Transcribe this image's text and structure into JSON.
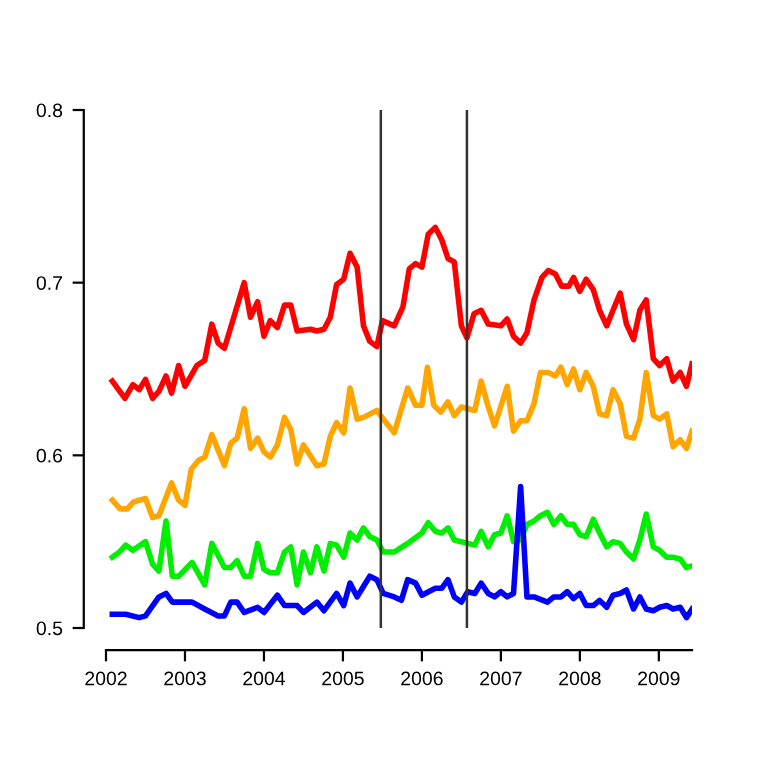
{
  "chart_data": {
    "type": "line",
    "xlim": [
      2002,
      2009.42
    ],
    "ylim": [
      0.5,
      0.8
    ],
    "xticks": [
      2002,
      2003,
      2004,
      2005,
      2006,
      2007,
      2008,
      2009
    ],
    "yticks": [
      {
        "value": 0.5,
        "label": "0.5"
      },
      {
        "value": 0.6,
        "label": "0.6"
      },
      {
        "value": 0.7,
        "label": "0.7"
      },
      {
        "value": 0.8,
        "label": "0.8"
      }
    ],
    "grid": false,
    "marker": "none",
    "line_style": "solid",
    "ref_lines": [
      {
        "axis": "x",
        "value": 2005.48,
        "color": "#333333"
      },
      {
        "axis": "x",
        "value": 2006.57,
        "color": "#333333"
      }
    ],
    "series": [
      {
        "color": "#ff0000",
        "x": [
          2002.08,
          2002.24,
          2002.34,
          2002.42,
          2002.5,
          2002.59,
          2002.67,
          2002.76,
          2002.83,
          2002.92,
          2003.0,
          2003.15,
          2003.25,
          2003.34,
          2003.42,
          2003.5,
          2003.75,
          2003.83,
          2003.92,
          2004.0,
          2004.08,
          2004.17,
          2004.26,
          2004.34,
          2004.42,
          2004.59,
          2004.67,
          2004.76,
          2004.84,
          2004.92,
          2005.01,
          2005.09,
          2005.18,
          2005.26,
          2005.34,
          2005.43,
          2005.5,
          2005.65,
          2005.76,
          2005.84,
          2005.92,
          2006.0,
          2006.08,
          2006.17,
          2006.25,
          2006.33,
          2006.41,
          2006.5,
          2006.57,
          2006.66,
          2006.75,
          2006.84,
          2007.0,
          2007.08,
          2007.16,
          2007.25,
          2007.33,
          2007.42,
          2007.52,
          2007.6,
          2007.69,
          2007.77,
          2007.86,
          2007.92,
          2008.0,
          2008.08,
          2008.17,
          2008.25,
          2008.34,
          2008.42,
          2008.51,
          2008.59,
          2008.68,
          2008.76,
          2008.84,
          2008.93,
          2009.01,
          2009.1,
          2009.18,
          2009.27,
          2009.35,
          2009.42
        ],
        "values": [
          0.643,
          0.633,
          0.641,
          0.638,
          0.644,
          0.633,
          0.637,
          0.646,
          0.636,
          0.652,
          0.64,
          0.652,
          0.655,
          0.676,
          0.665,
          0.662,
          0.7,
          0.68,
          0.689,
          0.669,
          0.678,
          0.674,
          0.687,
          0.687,
          0.672,
          0.673,
          0.672,
          0.673,
          0.68,
          0.699,
          0.702,
          0.717,
          0.709,
          0.675,
          0.666,
          0.663,
          0.678,
          0.675,
          0.686,
          0.708,
          0.711,
          0.709,
          0.728,
          0.732,
          0.725,
          0.714,
          0.712,
          0.675,
          0.668,
          0.682,
          0.684,
          0.676,
          0.675,
          0.679,
          0.669,
          0.665,
          0.671,
          0.69,
          0.703,
          0.707,
          0.705,
          0.698,
          0.698,
          0.703,
          0.695,
          0.702,
          0.696,
          0.684,
          0.675,
          0.684,
          0.694,
          0.676,
          0.667,
          0.684,
          0.69,
          0.656,
          0.652,
          0.656,
          0.643,
          0.648,
          0.64,
          0.653
        ]
      },
      {
        "color": "#ffa500",
        "x": [
          2002.08,
          2002.18,
          2002.27,
          2002.35,
          2002.5,
          2002.59,
          2002.67,
          2002.83,
          2002.92,
          2003.0,
          2003.08,
          2003.17,
          2003.25,
          2003.34,
          2003.42,
          2003.5,
          2003.58,
          2003.66,
          2003.75,
          2003.83,
          2003.92,
          2004.0,
          2004.08,
          2004.17,
          2004.26,
          2004.34,
          2004.42,
          2004.5,
          2004.67,
          2004.76,
          2004.84,
          2004.92,
          2005.01,
          2005.09,
          2005.18,
          2005.26,
          2005.43,
          2005.51,
          2005.65,
          2005.82,
          2005.92,
          2006.0,
          2006.07,
          2006.15,
          2006.24,
          2006.33,
          2006.41,
          2006.5,
          2006.67,
          2006.75,
          2006.84,
          2006.92,
          2007.08,
          2007.16,
          2007.25,
          2007.33,
          2007.42,
          2007.5,
          2007.6,
          2007.69,
          2007.76,
          2007.84,
          2007.92,
          2008.0,
          2008.08,
          2008.17,
          2008.25,
          2008.34,
          2008.42,
          2008.51,
          2008.59,
          2008.68,
          2008.76,
          2008.84,
          2008.93,
          2009.01,
          2009.1,
          2009.18,
          2009.27,
          2009.35,
          2009.42
        ],
        "values": [
          0.574,
          0.569,
          0.569,
          0.573,
          0.575,
          0.564,
          0.565,
          0.584,
          0.574,
          0.571,
          0.592,
          0.597,
          0.599,
          0.612,
          0.603,
          0.594,
          0.607,
          0.61,
          0.627,
          0.604,
          0.61,
          0.602,
          0.599,
          0.606,
          0.622,
          0.615,
          0.595,
          0.606,
          0.594,
          0.595,
          0.611,
          0.619,
          0.613,
          0.639,
          0.621,
          0.622,
          0.626,
          0.621,
          0.613,
          0.639,
          0.629,
          0.629,
          0.651,
          0.629,
          0.625,
          0.631,
          0.623,
          0.628,
          0.626,
          0.643,
          0.628,
          0.617,
          0.64,
          0.614,
          0.62,
          0.62,
          0.63,
          0.648,
          0.648,
          0.646,
          0.651,
          0.641,
          0.65,
          0.638,
          0.648,
          0.64,
          0.624,
          0.623,
          0.638,
          0.63,
          0.611,
          0.61,
          0.621,
          0.648,
          0.623,
          0.621,
          0.624,
          0.605,
          0.609,
          0.604,
          0.614
        ]
      },
      {
        "color": "#00ee00",
        "x": [
          2002.08,
          2002.17,
          2002.25,
          2002.34,
          2002.5,
          2002.59,
          2002.67,
          2002.76,
          2002.84,
          2002.92,
          2003.09,
          2003.25,
          2003.34,
          2003.5,
          2003.58,
          2003.66,
          2003.75,
          2003.83,
          2003.92,
          2004.0,
          2004.08,
          2004.17,
          2004.26,
          2004.34,
          2004.42,
          2004.5,
          2004.59,
          2004.67,
          2004.76,
          2004.84,
          2004.92,
          2005.01,
          2005.09,
          2005.18,
          2005.26,
          2005.34,
          2005.43,
          2005.51,
          2005.65,
          2005.82,
          2006.0,
          2006.08,
          2006.17,
          2006.25,
          2006.33,
          2006.41,
          2006.58,
          2006.67,
          2006.75,
          2006.84,
          2006.92,
          2007.0,
          2007.08,
          2007.16,
          2007.25,
          2007.33,
          2007.42,
          2007.5,
          2007.59,
          2007.67,
          2007.76,
          2007.84,
          2007.92,
          2008.0,
          2008.08,
          2008.17,
          2008.25,
          2008.34,
          2008.42,
          2008.51,
          2008.59,
          2008.68,
          2008.76,
          2008.84,
          2008.93,
          2009.01,
          2009.1,
          2009.18,
          2009.27,
          2009.35,
          2009.42
        ],
        "values": [
          0.541,
          0.544,
          0.548,
          0.545,
          0.55,
          0.537,
          0.533,
          0.562,
          0.53,
          0.53,
          0.538,
          0.525,
          0.549,
          0.535,
          0.535,
          0.539,
          0.53,
          0.53,
          0.549,
          0.534,
          0.532,
          0.532,
          0.544,
          0.547,
          0.525,
          0.544,
          0.532,
          0.547,
          0.533,
          0.549,
          0.548,
          0.541,
          0.555,
          0.551,
          0.558,
          0.553,
          0.551,
          0.544,
          0.544,
          0.549,
          0.555,
          0.561,
          0.556,
          0.555,
          0.558,
          0.551,
          0.549,
          0.548,
          0.556,
          0.547,
          0.554,
          0.555,
          0.565,
          0.55,
          0.551,
          0.56,
          0.562,
          0.565,
          0.567,
          0.56,
          0.565,
          0.56,
          0.56,
          0.554,
          0.553,
          0.563,
          0.555,
          0.547,
          0.55,
          0.549,
          0.544,
          0.54,
          0.551,
          0.566,
          0.547,
          0.545,
          0.541,
          0.541,
          0.54,
          0.535,
          0.536
        ]
      },
      {
        "color": "#0000ff",
        "x": [
          2002.08,
          2002.25,
          2002.42,
          2002.5,
          2002.67,
          2002.76,
          2002.84,
          2003.09,
          2003.25,
          2003.42,
          2003.5,
          2003.58,
          2003.66,
          2003.75,
          2003.92,
          2004.0,
          2004.17,
          2004.26,
          2004.42,
          2004.5,
          2004.67,
          2004.76,
          2004.92,
          2005.01,
          2005.09,
          2005.18,
          2005.26,
          2005.34,
          2005.43,
          2005.51,
          2005.65,
          2005.74,
          2005.82,
          2005.92,
          2006.0,
          2006.17,
          2006.25,
          2006.33,
          2006.41,
          2006.5,
          2006.58,
          2006.67,
          2006.75,
          2006.84,
          2006.92,
          2007.0,
          2007.08,
          2007.16,
          2007.25,
          2007.33,
          2007.42,
          2007.59,
          2007.67,
          2007.76,
          2007.84,
          2007.92,
          2008.0,
          2008.08,
          2008.17,
          2008.25,
          2008.34,
          2008.42,
          2008.51,
          2008.59,
          2008.68,
          2008.76,
          2008.84,
          2008.93,
          2009.01,
          2009.1,
          2009.18,
          2009.27,
          2009.35,
          2009.42
        ],
        "values": [
          0.508,
          0.508,
          0.506,
          0.507,
          0.518,
          0.52,
          0.515,
          0.515,
          0.511,
          0.507,
          0.507,
          0.515,
          0.515,
          0.509,
          0.512,
          0.509,
          0.519,
          0.513,
          0.513,
          0.509,
          0.515,
          0.51,
          0.52,
          0.513,
          0.526,
          0.518,
          0.524,
          0.53,
          0.528,
          0.52,
          0.518,
          0.516,
          0.528,
          0.526,
          0.519,
          0.523,
          0.523,
          0.528,
          0.518,
          0.515,
          0.521,
          0.52,
          0.526,
          0.52,
          0.518,
          0.521,
          0.518,
          0.52,
          0.582,
          0.518,
          0.518,
          0.515,
          0.518,
          0.518,
          0.521,
          0.517,
          0.52,
          0.513,
          0.513,
          0.516,
          0.512,
          0.519,
          0.52,
          0.522,
          0.511,
          0.518,
          0.511,
          0.51,
          0.512,
          0.513,
          0.511,
          0.512,
          0.506,
          0.511
        ]
      }
    ]
  }
}
